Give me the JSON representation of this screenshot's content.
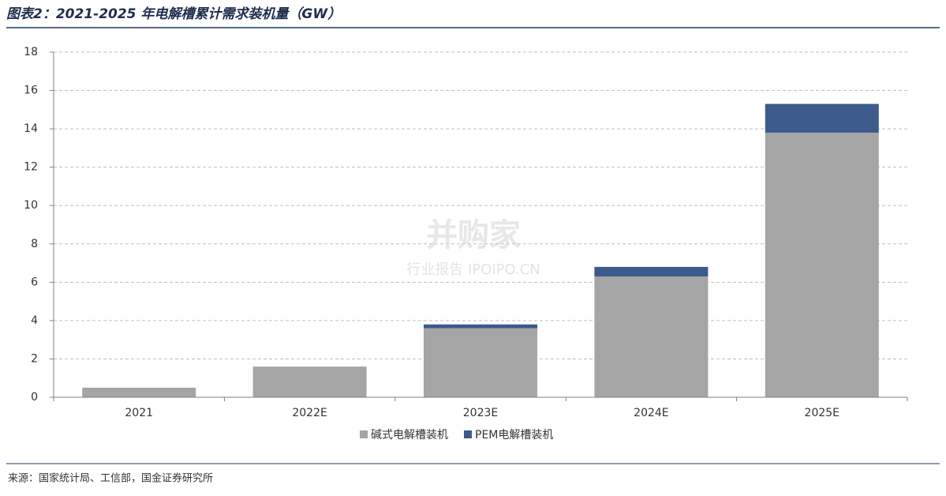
{
  "chart_data": {
    "type": "stacked_bar",
    "title": "图表2：2021-2025 年电解槽累计需求装机量（GW）",
    "categories": [
      "2021",
      "2022E",
      "2023E",
      "2024E",
      "2025E"
    ],
    "series": [
      {
        "name": "碱式电解槽装机",
        "color": "#a5a5a5",
        "values": [
          0.5,
          1.6,
          3.6,
          6.3,
          13.8
        ]
      },
      {
        "name": "PEM电解槽装机",
        "color": "#3c5a8c",
        "values": [
          0,
          0,
          0.2,
          0.5,
          1.5
        ]
      }
    ],
    "ylim": [
      0,
      18
    ],
    "yticks": [
      0,
      2,
      4,
      6,
      8,
      10,
      12,
      14,
      16,
      18
    ],
    "grid": true,
    "legend": "bottom",
    "watermark": [
      "并购家",
      "行业报告 IPOIPO.CN"
    ],
    "source": "来源：国家统计局、工信部，国金证券研究所"
  }
}
